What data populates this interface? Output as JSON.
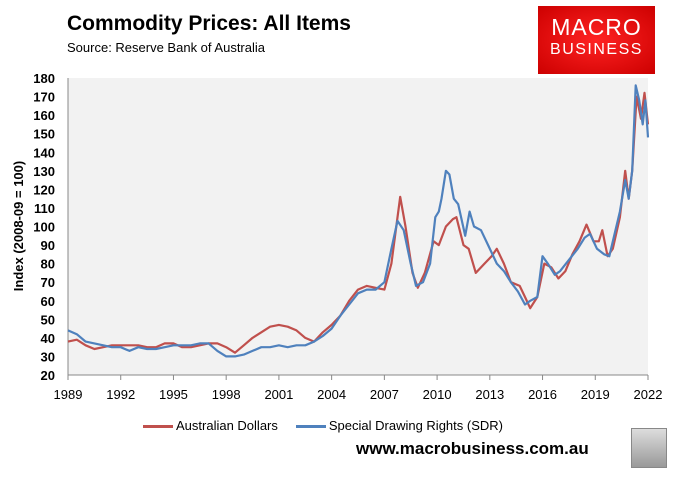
{
  "title": "Commodity Prices: All Items",
  "source": "Source: Reserve Bank of Australia",
  "logo": {
    "line1": "MACRO",
    "line2": "BUSINESS",
    "color": "#e31b1b"
  },
  "url": "www.macrobusiness.com.au",
  "chart_data": {
    "type": "line",
    "title": "Commodity Prices: All Items",
    "xlabel": "",
    "ylabel": "Index (2008-09 = 100)",
    "xlim": [
      1989,
      2022
    ],
    "ylim": [
      20,
      180
    ],
    "xticks": [
      "1989",
      "1992",
      "1995",
      "1998",
      "2001",
      "2004",
      "2007",
      "2010",
      "2013",
      "2016",
      "2019",
      "2022"
    ],
    "yticks": [
      "20",
      "30",
      "40",
      "50",
      "60",
      "70",
      "80",
      "90",
      "100",
      "110",
      "120",
      "130",
      "140",
      "150",
      "160",
      "170",
      "180"
    ],
    "grid": false,
    "legend": "bottom",
    "series": [
      {
        "name": "Australian Dollars",
        "color": "#c0504d",
        "points": [
          [
            1989,
            38
          ],
          [
            1989.5,
            39
          ],
          [
            1990,
            36
          ],
          [
            1990.5,
            34
          ],
          [
            1991,
            35
          ],
          [
            1991.5,
            36
          ],
          [
            1992,
            36
          ],
          [
            1992.5,
            36
          ],
          [
            1993,
            36
          ],
          [
            1993.5,
            35
          ],
          [
            1994,
            35
          ],
          [
            1994.5,
            37
          ],
          [
            1995,
            37
          ],
          [
            1995.5,
            35
          ],
          [
            1996,
            35
          ],
          [
            1996.5,
            36
          ],
          [
            1997,
            37
          ],
          [
            1997.5,
            37
          ],
          [
            1998,
            35
          ],
          [
            1998.5,
            32
          ],
          [
            1999,
            36
          ],
          [
            1999.5,
            40
          ],
          [
            2000,
            43
          ],
          [
            2000.5,
            46
          ],
          [
            2001,
            47
          ],
          [
            2001.5,
            46
          ],
          [
            2002,
            44
          ],
          [
            2002.5,
            40
          ],
          [
            2003,
            38
          ],
          [
            2003.5,
            43
          ],
          [
            2004,
            47
          ],
          [
            2004.5,
            52
          ],
          [
            2005,
            60
          ],
          [
            2005.5,
            66
          ],
          [
            2006,
            68
          ],
          [
            2006.5,
            67
          ],
          [
            2007,
            66
          ],
          [
            2007.4,
            80
          ],
          [
            2007.9,
            116
          ],
          [
            2008.2,
            100
          ],
          [
            2008.6,
            75
          ],
          [
            2008.9,
            67
          ],
          [
            2009.3,
            75
          ],
          [
            2009.8,
            92
          ],
          [
            2010.1,
            90
          ],
          [
            2010.5,
            100
          ],
          [
            2010.9,
            104
          ],
          [
            2011.1,
            105
          ],
          [
            2011.5,
            90
          ],
          [
            2011.8,
            88
          ],
          [
            2012.2,
            75
          ],
          [
            2012.7,
            80
          ],
          [
            2013.1,
            84
          ],
          [
            2013.4,
            88
          ],
          [
            2013.8,
            80
          ],
          [
            2014.2,
            70
          ],
          [
            2014.7,
            68
          ],
          [
            2015,
            62
          ],
          [
            2015.3,
            56
          ],
          [
            2015.7,
            62
          ],
          [
            2016.1,
            80
          ],
          [
            2016.5,
            78
          ],
          [
            2016.9,
            72
          ],
          [
            2017.3,
            76
          ],
          [
            2017.7,
            85
          ],
          [
            2018.1,
            92
          ],
          [
            2018.5,
            101
          ],
          [
            2018.9,
            92
          ],
          [
            2019.2,
            92
          ],
          [
            2019.4,
            98
          ],
          [
            2019.7,
            84
          ],
          [
            2020,
            88
          ],
          [
            2020.4,
            105
          ],
          [
            2020.7,
            130
          ],
          [
            2020.9,
            115
          ],
          [
            2021.1,
            130
          ],
          [
            2021.35,
            170
          ],
          [
            2021.6,
            158
          ],
          [
            2021.8,
            172
          ],
          [
            2022,
            155
          ]
        ]
      },
      {
        "name": "Special Drawing Rights (SDR)",
        "color": "#4f81bd",
        "points": [
          [
            1989,
            44
          ],
          [
            1989.5,
            42
          ],
          [
            1990,
            38
          ],
          [
            1990.5,
            37
          ],
          [
            1991,
            36
          ],
          [
            1991.5,
            35
          ],
          [
            1992,
            35
          ],
          [
            1992.5,
            33
          ],
          [
            1993,
            35
          ],
          [
            1993.5,
            34
          ],
          [
            1994,
            34
          ],
          [
            1994.5,
            35
          ],
          [
            1995,
            36
          ],
          [
            1995.5,
            36
          ],
          [
            1996,
            36
          ],
          [
            1996.5,
            37
          ],
          [
            1997,
            37
          ],
          [
            1997.5,
            33
          ],
          [
            1998,
            30
          ],
          [
            1998.5,
            30
          ],
          [
            1999,
            31
          ],
          [
            1999.5,
            33
          ],
          [
            2000,
            35
          ],
          [
            2000.5,
            35
          ],
          [
            2001,
            36
          ],
          [
            2001.5,
            35
          ],
          [
            2002,
            36
          ],
          [
            2002.5,
            36
          ],
          [
            2003,
            38
          ],
          [
            2003.5,
            41
          ],
          [
            2004,
            45
          ],
          [
            2004.5,
            52
          ],
          [
            2005,
            58
          ],
          [
            2005.5,
            64
          ],
          [
            2006,
            66
          ],
          [
            2006.5,
            66
          ],
          [
            2007,
            70
          ],
          [
            2007.4,
            88
          ],
          [
            2007.75,
            103
          ],
          [
            2008.1,
            98
          ],
          [
            2008.5,
            80
          ],
          [
            2008.8,
            68
          ],
          [
            2009.2,
            70
          ],
          [
            2009.6,
            80
          ],
          [
            2009.9,
            105
          ],
          [
            2010.1,
            108
          ],
          [
            2010.25,
            115
          ],
          [
            2010.5,
            130
          ],
          [
            2010.7,
            128
          ],
          [
            2010.95,
            115
          ],
          [
            2011.2,
            112
          ],
          [
            2011.6,
            95
          ],
          [
            2011.85,
            108
          ],
          [
            2012.1,
            100
          ],
          [
            2012.5,
            98
          ],
          [
            2012.9,
            90
          ],
          [
            2013.4,
            80
          ],
          [
            2013.8,
            76
          ],
          [
            2014.2,
            70
          ],
          [
            2014.6,
            65
          ],
          [
            2015,
            58
          ],
          [
            2015.3,
            60
          ],
          [
            2015.7,
            62
          ],
          [
            2016,
            84
          ],
          [
            2016.3,
            80
          ],
          [
            2016.7,
            74
          ],
          [
            2017,
            76
          ],
          [
            2017.5,
            82
          ],
          [
            2018,
            88
          ],
          [
            2018.4,
            94
          ],
          [
            2018.7,
            96
          ],
          [
            2019.1,
            88
          ],
          [
            2019.5,
            85
          ],
          [
            2019.8,
            84
          ],
          [
            2020.1,
            96
          ],
          [
            2020.4,
            108
          ],
          [
            2020.7,
            125
          ],
          [
            2020.9,
            115
          ],
          [
            2021.1,
            130
          ],
          [
            2021.3,
            176
          ],
          [
            2021.5,
            168
          ],
          [
            2021.7,
            155
          ],
          [
            2021.85,
            168
          ],
          [
            2022,
            148
          ]
        ]
      }
    ]
  }
}
